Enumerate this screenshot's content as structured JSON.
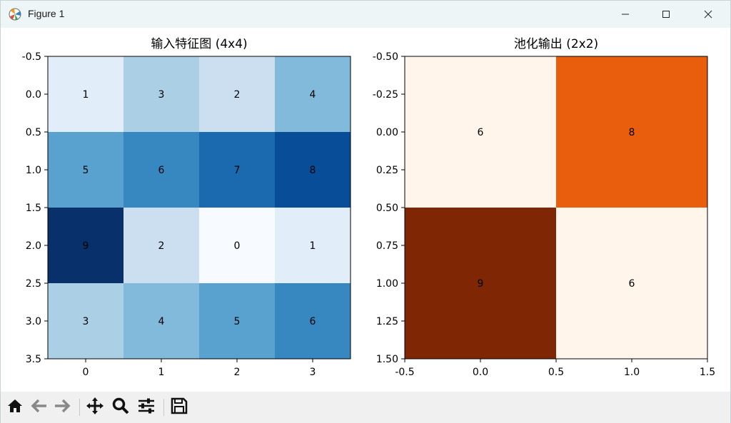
{
  "window": {
    "title": "Figure 1"
  },
  "toolbar": {
    "buttons": [
      {
        "name": "home-button",
        "icon": "home-icon"
      },
      {
        "name": "back-button",
        "icon": "arrow-left-icon"
      },
      {
        "name": "forward-button",
        "icon": "arrow-right-icon"
      },
      {
        "name": "pan-button",
        "icon": "move-icon"
      },
      {
        "name": "zoom-button",
        "icon": "magnifier-icon"
      },
      {
        "name": "configure-subplots-button",
        "icon": "sliders-icon"
      },
      {
        "name": "save-button",
        "icon": "floppy-disk-icon"
      }
    ]
  },
  "chart_data": [
    {
      "type": "heatmap",
      "title": "输入特征图 (4x4)",
      "colormap": "Blues",
      "values": [
        [
          1,
          3,
          2,
          4
        ],
        [
          5,
          6,
          7,
          8
        ],
        [
          9,
          2,
          0,
          1
        ],
        [
          3,
          4,
          5,
          6
        ]
      ],
      "xticks": [
        "0",
        "1",
        "2",
        "3"
      ],
      "yticks": [
        "-0.5",
        "0.0",
        "0.5",
        "1.0",
        "1.5",
        "2.0",
        "2.5",
        "3.0",
        "3.5"
      ],
      "xlim": [
        -0.5,
        3.5
      ],
      "ylim": [
        3.5,
        -0.5
      ]
    },
    {
      "type": "heatmap",
      "title": "池化输出 (2x2)",
      "colormap": "Oranges",
      "values": [
        [
          6,
          8
        ],
        [
          9,
          6
        ]
      ],
      "xticks": [
        "-0.5",
        "0.0",
        "0.5",
        "1.0",
        "1.5"
      ],
      "yticks": [
        "-0.50",
        "-0.25",
        "0.00",
        "0.25",
        "0.50",
        "0.75",
        "1.00",
        "1.25",
        "1.50"
      ],
      "xlim": [
        -0.5,
        1.5
      ],
      "ylim": [
        1.5,
        -0.5
      ]
    }
  ]
}
